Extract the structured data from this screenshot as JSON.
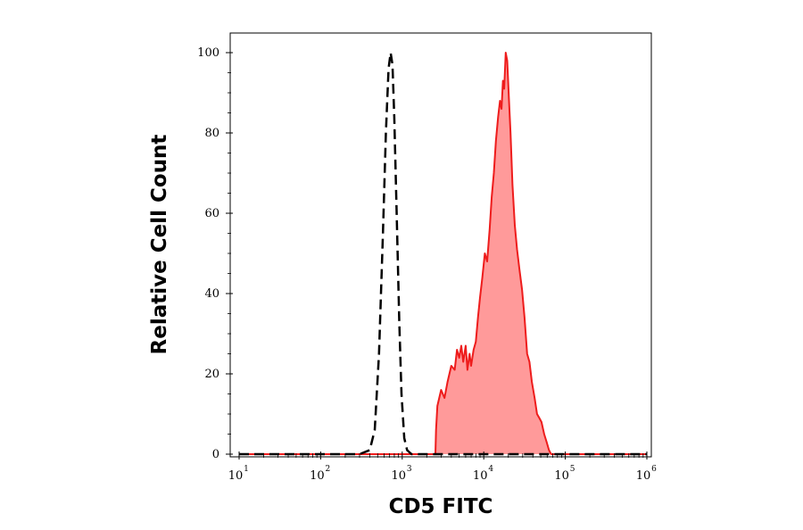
{
  "chart_data": {
    "type": "area",
    "xlabel": "CD5 FITC",
    "ylabel": "Relative Cell Count",
    "x_scale": "log",
    "xlim": [
      10,
      1000000
    ],
    "ylim": [
      0,
      100
    ],
    "x_ticks": [
      {
        "base": "10",
        "exp": "1"
      },
      {
        "base": "10",
        "exp": "2"
      },
      {
        "base": "10",
        "exp": "3"
      },
      {
        "base": "10",
        "exp": "4"
      },
      {
        "base": "10",
        "exp": "5"
      },
      {
        "base": "10",
        "exp": "6"
      }
    ],
    "y_ticks": [
      "0",
      "20",
      "40",
      "60",
      "80",
      "100"
    ],
    "grid": false,
    "legend": "none",
    "series": [
      {
        "style": "dashed-outline",
        "color": "#000000",
        "points": [
          [
            10,
            0
          ],
          [
            300,
            0
          ],
          [
            400,
            1
          ],
          [
            460,
            6
          ],
          [
            520,
            25
          ],
          [
            580,
            55
          ],
          [
            630,
            80
          ],
          [
            680,
            96
          ],
          [
            720,
            100
          ],
          [
            760,
            97
          ],
          [
            800,
            84
          ],
          [
            860,
            58
          ],
          [
            920,
            33
          ],
          [
            980,
            15
          ],
          [
            1060,
            4
          ],
          [
            1150,
            1
          ],
          [
            1300,
            0
          ],
          [
            1000000,
            0
          ]
        ]
      },
      {
        "style": "filled",
        "color": "#ee1c1c",
        "fill": "#ff9a9a",
        "points": [
          [
            10,
            0
          ],
          [
            2550,
            0
          ],
          [
            2600,
            6
          ],
          [
            2700,
            12
          ],
          [
            3000,
            16
          ],
          [
            3300,
            14
          ],
          [
            3600,
            18
          ],
          [
            4000,
            22
          ],
          [
            4400,
            21
          ],
          [
            4700,
            26
          ],
          [
            5000,
            24
          ],
          [
            5300,
            27
          ],
          [
            5600,
            23
          ],
          [
            6000,
            27
          ],
          [
            6300,
            21
          ],
          [
            6700,
            25
          ],
          [
            7000,
            22
          ],
          [
            7500,
            26
          ],
          [
            8000,
            28
          ],
          [
            8500,
            34
          ],
          [
            9000,
            39
          ],
          [
            9600,
            44
          ],
          [
            10300,
            50
          ],
          [
            11000,
            48
          ],
          [
            11800,
            56
          ],
          [
            12500,
            64
          ],
          [
            13300,
            70
          ],
          [
            14100,
            78
          ],
          [
            15000,
            84
          ],
          [
            15800,
            88
          ],
          [
            16500,
            86
          ],
          [
            17200,
            93
          ],
          [
            17800,
            91
          ],
          [
            18600,
            100
          ],
          [
            19400,
            98
          ],
          [
            20300,
            89
          ],
          [
            21300,
            80
          ],
          [
            22500,
            67
          ],
          [
            24000,
            57
          ],
          [
            25600,
            51
          ],
          [
            27400,
            46
          ],
          [
            29500,
            41
          ],
          [
            31600,
            34
          ],
          [
            34000,
            25
          ],
          [
            36300,
            23
          ],
          [
            38900,
            18
          ],
          [
            42000,
            14
          ],
          [
            45000,
            10
          ],
          [
            48000,
            9
          ],
          [
            51000,
            8
          ],
          [
            55000,
            5
          ],
          [
            59000,
            3
          ],
          [
            63000,
            1
          ],
          [
            67000,
            0
          ],
          [
            1000000,
            0
          ]
        ]
      }
    ]
  }
}
